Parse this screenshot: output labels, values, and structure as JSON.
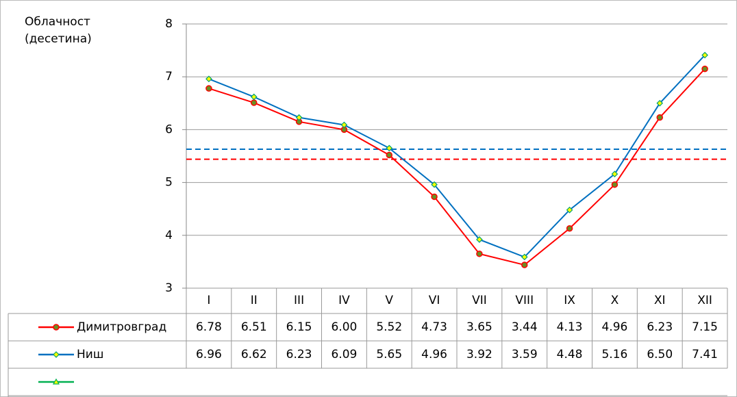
{
  "chart_data": {
    "type": "line",
    "y_label": "Облачност (десетина)",
    "categories": [
      "I",
      "II",
      "III",
      "IV",
      "V",
      "VI",
      "VII",
      "VIII",
      "IX",
      "X",
      "XI",
      "XII"
    ],
    "series": [
      {
        "name": "Димитровград",
        "color": "#ff0000",
        "marker": "circle",
        "marker_fill": "#6b8e23",
        "values": [
          6.78,
          6.51,
          6.15,
          6.0,
          5.52,
          4.73,
          3.65,
          3.44,
          4.13,
          4.96,
          6.23,
          7.15
        ],
        "value_labels": [
          "6.78",
          "6.51",
          "6.15",
          "6.00",
          "5.52",
          "4.73",
          "3.65",
          "3.44",
          "4.13",
          "4.96",
          "6.23",
          "7.15"
        ]
      },
      {
        "name": "Ниш",
        "color": "#0070c0",
        "marker": "diamond",
        "marker_fill": "#ffff00",
        "values": [
          6.96,
          6.62,
          6.23,
          6.09,
          5.65,
          4.96,
          3.92,
          3.59,
          4.48,
          5.16,
          6.5,
          7.41
        ],
        "value_labels": [
          "6.96",
          "6.62",
          "6.23",
          "6.09",
          "5.65",
          "4.96",
          "3.92",
          "3.59",
          "4.48",
          "5.16",
          "6.50",
          "7.41"
        ]
      },
      {
        "color": "#00b050",
        "marker": "triangle",
        "marker_fill": "#ffff00",
        "values": [
          null,
          null,
          null,
          null,
          null,
          null,
          null,
          null,
          null,
          null,
          null,
          null
        ]
      }
    ],
    "reference_lines": [
      {
        "value": 5.44,
        "color": "#ff0000"
      },
      {
        "value": 5.63,
        "color": "#0070c0"
      }
    ],
    "ylim": [
      3,
      8
    ],
    "yticks": [
      3,
      4,
      5,
      6,
      7,
      8
    ],
    "grid": true,
    "data_table": true
  }
}
